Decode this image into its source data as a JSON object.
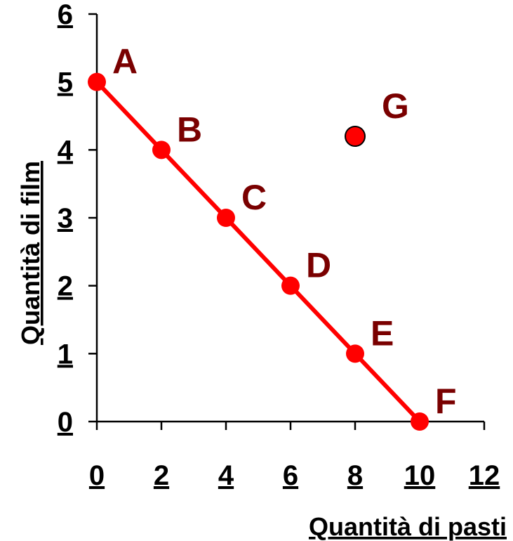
{
  "chart_data": {
    "type": "scatter",
    "xlabel": "Quantità di pasti",
    "ylabel": "Quantità di film",
    "xlim": [
      0,
      12
    ],
    "ylim": [
      0,
      6
    ],
    "x_ticks": [
      "0",
      "2",
      "4",
      "6",
      "8",
      "10",
      "12"
    ],
    "y_ticks": [
      "0",
      "1",
      "2",
      "3",
      "4",
      "5",
      "6"
    ],
    "grid": false,
    "series": [
      {
        "color": "#ff0000",
        "line": true,
        "points": [
          {
            "label": "A",
            "x": 0,
            "y": 5
          },
          {
            "label": "B",
            "x": 2,
            "y": 4
          },
          {
            "label": "C",
            "x": 4,
            "y": 3
          },
          {
            "label": "D",
            "x": 6,
            "y": 2
          },
          {
            "label": "E",
            "x": 8,
            "y": 1
          },
          {
            "label": "F",
            "x": 10,
            "y": 0
          }
        ]
      },
      {
        "color": "#ff0000",
        "outline": "#000000",
        "line": false,
        "points": [
          {
            "label": "G",
            "x": 8,
            "y": 4.2
          }
        ]
      }
    ],
    "label_color": "#7a0000"
  }
}
